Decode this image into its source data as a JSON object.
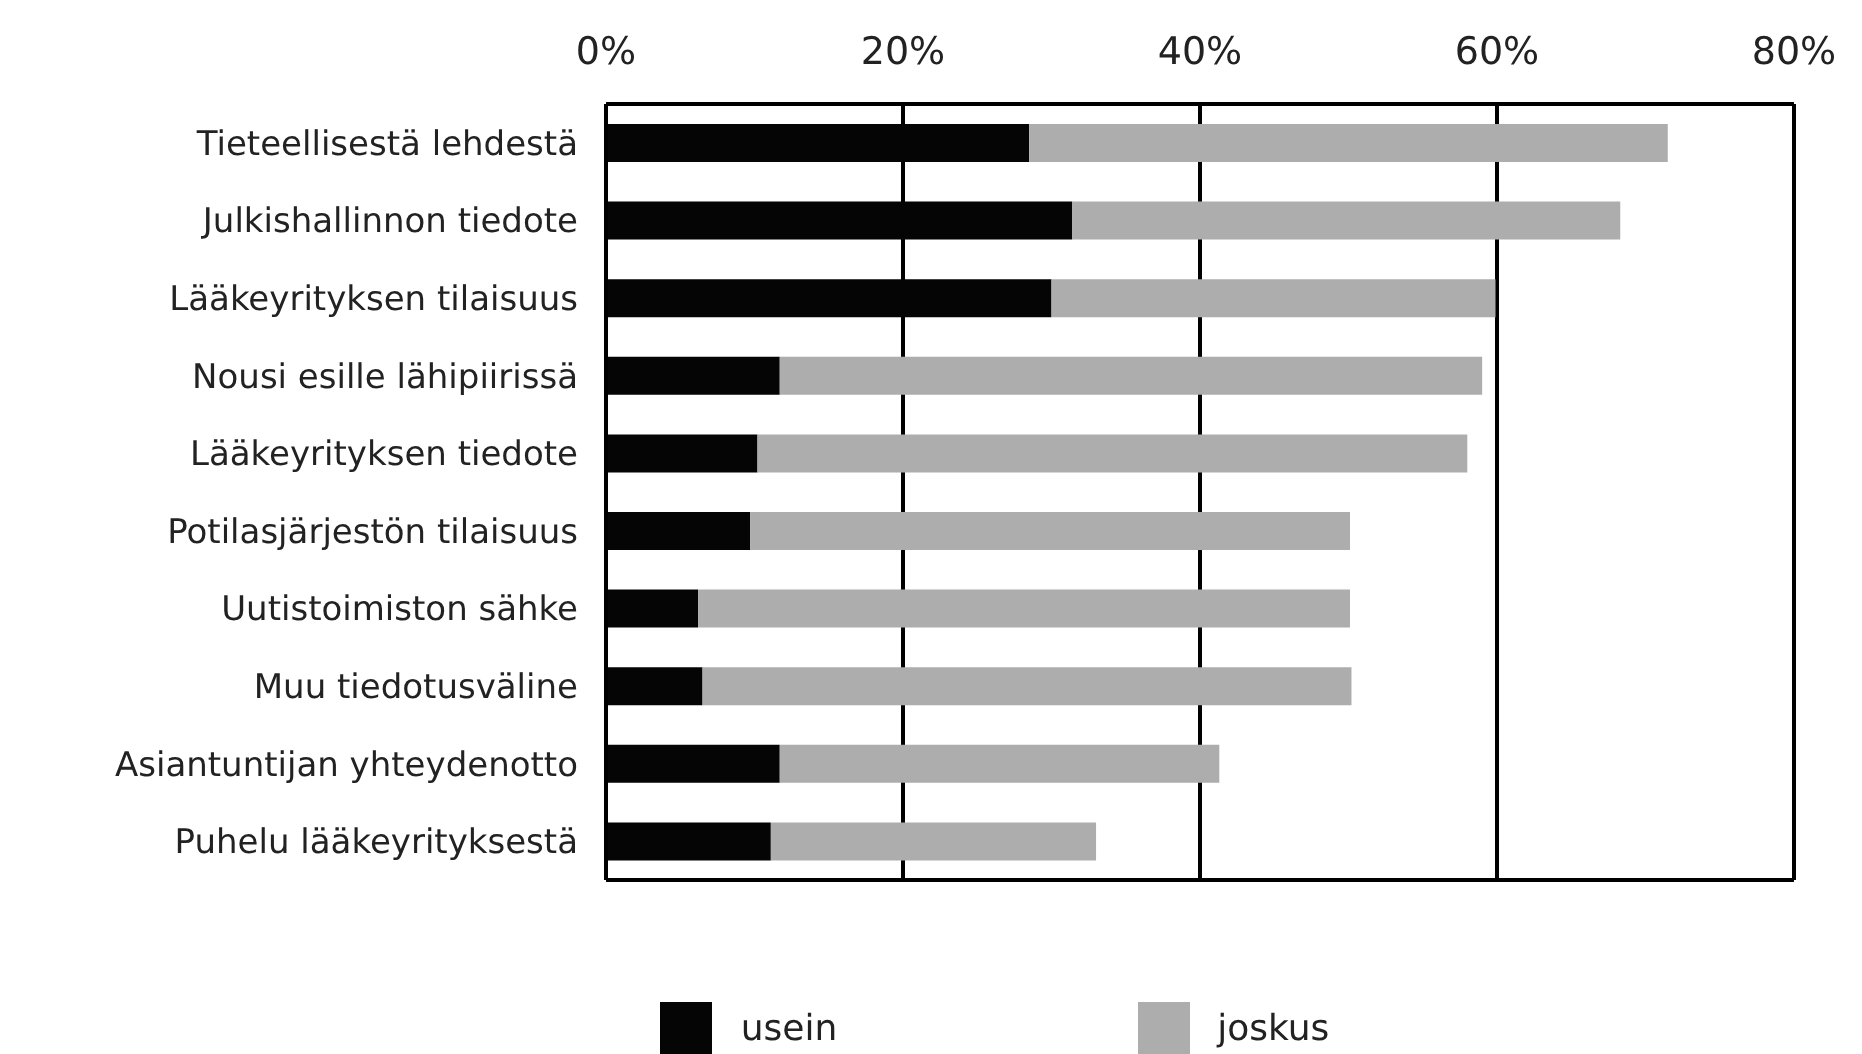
{
  "chart_data": {
    "type": "bar",
    "orientation": "horizontal",
    "stacked": true,
    "categories": [
      "Tieteellisestä lehdestä",
      "Julkishallinnon tiedote",
      "Lääkeyrityksen tilaisuus",
      "Nousi esille lähipiirissä",
      "Lääkeyrityksen tiedote",
      "Potilasjärjestön tilaisuus",
      "Uutistoimiston sähke",
      "Muu tiedotusväline",
      "Asiantuntijan yhteydenotto",
      "Puhelu lääkeyrityksestä"
    ],
    "series": [
      {
        "name": "usein",
        "color": "#050505",
        "values": [
          28.5,
          31.4,
          30.0,
          11.7,
          10.2,
          9.7,
          6.2,
          6.5,
          11.7,
          11.1
        ]
      },
      {
        "name": "joskus",
        "color": "#adadad",
        "values": [
          43.0,
          36.9,
          29.9,
          47.3,
          47.8,
          40.4,
          43.9,
          43.7,
          29.6,
          21.9
        ]
      }
    ],
    "xlim": [
      0,
      80
    ],
    "xticks": [
      {
        "value": 0,
        "label": "0%"
      },
      {
        "value": 20,
        "label": "20%"
      },
      {
        "value": 40,
        "label": "40%"
      },
      {
        "value": 60,
        "label": "60%"
      },
      {
        "value": 80,
        "label": "80%"
      }
    ],
    "grid": "x",
    "legend": "bottom"
  }
}
